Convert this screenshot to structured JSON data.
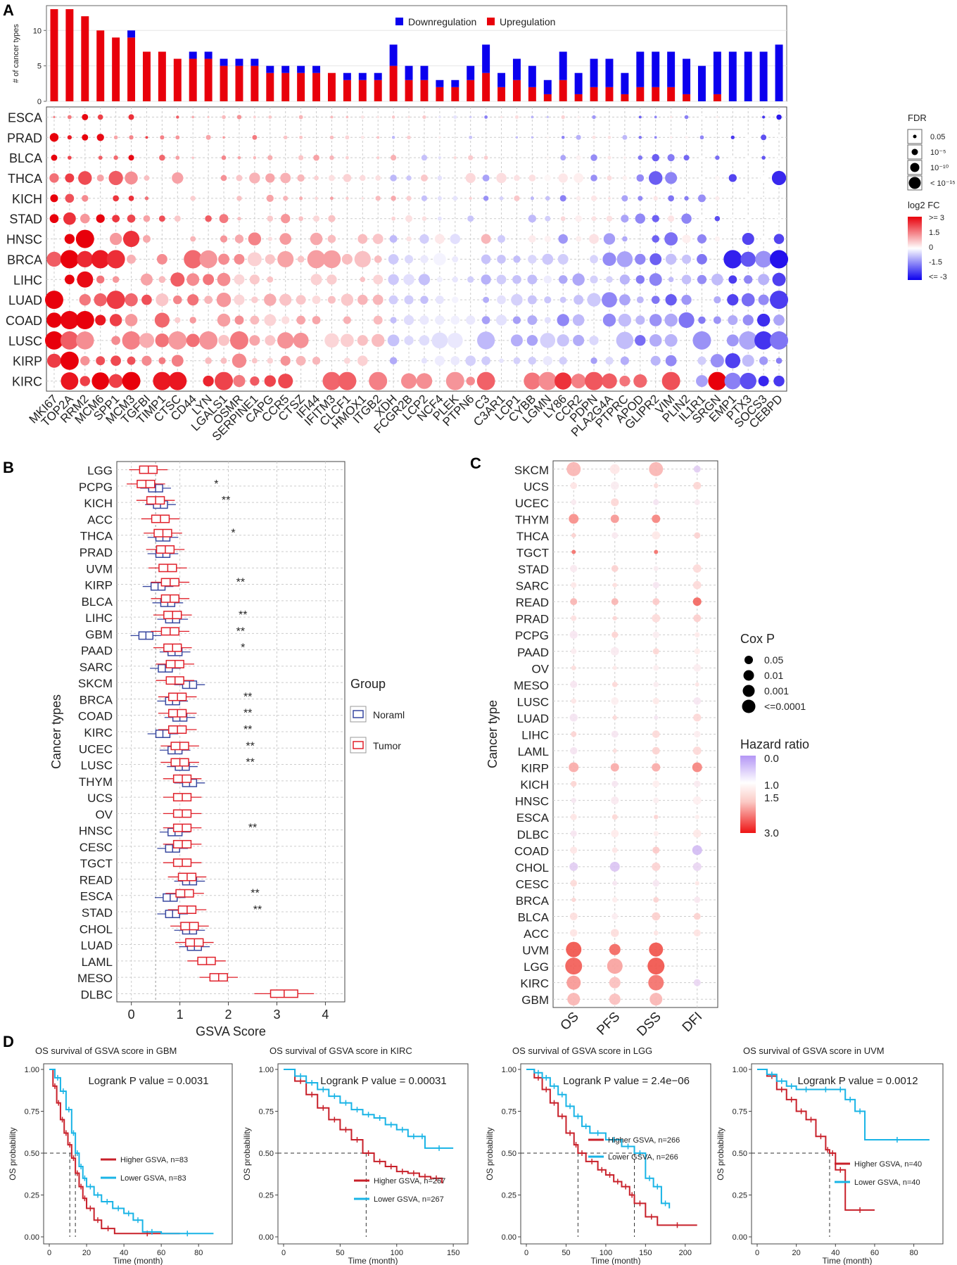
{
  "panel_labels": [
    "A",
    "B",
    "C",
    "D"
  ],
  "colors": {
    "red": "#e8000b",
    "blue": "#0b00ee",
    "km_red": "#c8202a",
    "km_blue": "#19b4e6",
    "normal_box": "#3848a0",
    "tumor_box": "#e0202a",
    "grid": "#cccccc"
  },
  "chart_data": [
    {
      "id": "A_bar",
      "type": "bar",
      "stacked": true,
      "ylabel": "# of cancer types",
      "ylim": [
        0,
        13.5
      ],
      "yticks": [
        0,
        5,
        10
      ],
      "legend": [
        "Downregulation",
        "Upregulation"
      ],
      "categories": [
        "MKI67",
        "TOP2A",
        "RRM2",
        "MCM6",
        "SPP1",
        "MCM3",
        "TGFBI",
        "TIMP1",
        "CTSC",
        "CD44",
        "LYN",
        "LGALS1",
        "OSMR",
        "SERPINE1",
        "CAPG",
        "CCR5",
        "CTSZ",
        "IFI44",
        "IFITM3",
        "CLCF1",
        "HMOX1",
        "ITGB2",
        "XDH",
        "FCGR2B",
        "LCP2",
        "NCF4",
        "PLEK",
        "PTPN6",
        "C3",
        "C3AR1",
        "LCP1",
        "CYBB",
        "LGMN",
        "LY86",
        "CCR2",
        "PDPN",
        "PLA2G4A",
        "PTPRC",
        "APOD",
        "GLIPR2",
        "VIM",
        "PLIN2",
        "IL1R1",
        "SRGN",
        "EMP1",
        "PTX3",
        "SOCS3",
        "CEBPD"
      ],
      "series": [
        {
          "name": "Upregulation",
          "values": [
            13,
            13,
            12,
            10,
            9,
            9,
            7,
            7,
            6,
            6,
            6,
            5,
            5,
            5,
            4,
            4,
            4,
            4,
            4,
            3,
            3,
            3,
            5,
            3,
            3,
            2,
            2,
            3,
            4,
            2,
            3,
            2,
            1,
            3,
            1,
            2,
            2,
            1,
            2,
            2,
            2,
            1,
            0,
            1,
            0,
            0,
            0,
            0
          ]
        },
        {
          "name": "Downregulation",
          "values": [
            0,
            0,
            0,
            0,
            0,
            1,
            0,
            0,
            0,
            1,
            1,
            1,
            1,
            1,
            1,
            1,
            1,
            1,
            0,
            1,
            1,
            1,
            3,
            2,
            2,
            1,
            1,
            2,
            4,
            2,
            3,
            3,
            2,
            4,
            3,
            4,
            4,
            3,
            5,
            5,
            5,
            5,
            5,
            6,
            7,
            7,
            7,
            8
          ]
        }
      ]
    },
    {
      "id": "A_dot",
      "type": "scatter",
      "rows": [
        "ESCA",
        "PRAD",
        "BLCA",
        "THCA",
        "KICH",
        "STAD",
        "HNSC",
        "BRCA",
        "LIHC",
        "LUAD",
        "COAD",
        "LUSC",
        "KIRP",
        "KIRC"
      ],
      "legend_size_title": "FDR",
      "legend_size_labels": [
        "0.05",
        "10⁻⁵",
        "10⁻¹⁰",
        "< 10⁻¹⁵"
      ],
      "legend_color_title": "log2 FC",
      "legend_color_labels": [
        ">= 3",
        "1.5",
        "0",
        "-1.5",
        "<= -3"
      ]
    },
    {
      "id": "B",
      "type": "boxplot",
      "xlabel": "GSVA Score",
      "ylabel": "Cancer types",
      "xlim": [
        -0.3,
        4.4
      ],
      "xticks": [
        0,
        1,
        2,
        3,
        4
      ],
      "legend_title": "Group",
      "legend": [
        "Noraml",
        "Tumor"
      ],
      "categories": [
        "LGG",
        "PCPG",
        "KICH",
        "ACC",
        "THCA",
        "PRAD",
        "UVM",
        "KIRP",
        "BLCA",
        "LIHC",
        "GBM",
        "PAAD",
        "SARC",
        "SKCM",
        "BRCA",
        "COAD",
        "KIRC",
        "UCEC",
        "LUSC",
        "THYM",
        "UCS",
        "OV",
        "HNSC",
        "CESC",
        "TGCT",
        "READ",
        "ESCA",
        "STAD",
        "CHOL",
        "LUAD",
        "LAML",
        "MESO",
        "DLBC"
      ],
      "tumor_median": [
        0.35,
        0.3,
        0.5,
        0.6,
        0.65,
        0.7,
        0.75,
        0.8,
        0.8,
        0.85,
        0.8,
        0.85,
        0.9,
        0.9,
        0.95,
        0.95,
        0.95,
        1.0,
        1.0,
        1.05,
        1.05,
        1.05,
        1.05,
        1.05,
        1.05,
        1.15,
        1.1,
        1.15,
        1.2,
        1.3,
        1.55,
        1.8,
        3.15
      ],
      "normal_median": [
        null,
        0.5,
        0.6,
        null,
        0.65,
        0.65,
        null,
        0.55,
        0.75,
        0.85,
        0.3,
        0.9,
        0.7,
        1.2,
        0.85,
        1.0,
        0.65,
        0.9,
        1.05,
        1.2,
        null,
        null,
        0.9,
        0.85,
        null,
        1.2,
        0.8,
        0.85,
        1.2,
        1.3,
        null,
        null,
        null
      ],
      "significance": [
        "",
        "*",
        "**",
        "",
        "*",
        "",
        "",
        "**",
        "",
        "**",
        "**",
        "*",
        "",
        "",
        "**",
        "**",
        "**",
        "**",
        "**",
        "",
        "",
        "",
        "**",
        "",
        "",
        "",
        "**",
        "**",
        "",
        "",
        "",
        "",
        ""
      ]
    },
    {
      "id": "C",
      "type": "scatter",
      "xlabel": "",
      "ylabel": "Cancer type",
      "columns": [
        "OS",
        "PFS",
        "DSS",
        "DFI"
      ],
      "rows": [
        "SKCM",
        "UCS",
        "UCEC",
        "THYM",
        "THCA",
        "TGCT",
        "STAD",
        "SARC",
        "READ",
        "PRAD",
        "PCPG",
        "PAAD",
        "OV",
        "MESO",
        "LUSC",
        "LUAD",
        "LIHC",
        "LAML",
        "KIRP",
        "KICH",
        "HNSC",
        "ESCA",
        "DLBC",
        "COAD",
        "CHOL",
        "CESC",
        "BRCA",
        "BLCA",
        "ACC",
        "UVM",
        "LGG",
        "KIRC",
        "GBM"
      ],
      "legend_size_title": "Cox P",
      "legend_size_labels": [
        "0.05",
        "0.01",
        "0.001",
        "<=0.0001"
      ],
      "legend_color_title": "Hazard ratio",
      "legend_color_labels": [
        "0.0",
        "1.0",
        "1.5",
        "3.0"
      ]
    },
    {
      "id": "D1",
      "type": "line",
      "title": "OS survival of GSVA score in GBM",
      "pvalue_text": "Logrank P value = 0.0031",
      "xlabel": "Time (month)",
      "ylabel": "OS probability",
      "xlim": [
        0,
        95
      ],
      "xticks": [
        0,
        20,
        40,
        60,
        80
      ],
      "yticks": [
        "0.00",
        "0.25",
        "0.50",
        "0.75",
        "1.00"
      ],
      "legend": [
        "Higher GSVA, n=83",
        "Lower GSVA, n=83"
      ],
      "median_time": [
        11,
        14
      ],
      "series": [
        {
          "name": "Higher GSVA",
          "x": [
            0,
            2,
            4,
            6,
            8,
            10,
            12,
            14,
            16,
            18,
            20,
            24,
            28,
            35,
            70
          ],
          "y": [
            1,
            0.9,
            0.8,
            0.7,
            0.62,
            0.55,
            0.47,
            0.38,
            0.3,
            0.23,
            0.17,
            0.1,
            0.05,
            0.02,
            0.02
          ]
        },
        {
          "name": "Lower GSVA",
          "x": [
            0,
            3,
            6,
            9,
            12,
            14,
            16,
            18,
            20,
            24,
            28,
            34,
            40,
            45,
            50,
            60,
            88
          ],
          "y": [
            1,
            0.95,
            0.87,
            0.76,
            0.62,
            0.5,
            0.42,
            0.35,
            0.3,
            0.25,
            0.21,
            0.17,
            0.14,
            0.1,
            0.03,
            0.02,
            0.02
          ]
        }
      ]
    },
    {
      "id": "D2",
      "type": "line",
      "title": "OS survival of GSVA score in KIRC",
      "pvalue_text": "Logrank P value = 0.00031",
      "xlabel": "Time (month)",
      "ylabel": "OS probability",
      "xlim": [
        0,
        158
      ],
      "xticks": [
        0,
        50,
        100,
        150
      ],
      "yticks": [
        "0.00",
        "0.25",
        "0.50",
        "0.75",
        "1.00"
      ],
      "legend": [
        "Higher GSVA, n=267",
        "Lower GSVA, n=267"
      ],
      "median_time": [
        73
      ],
      "series": [
        {
          "name": "Higher GSVA",
          "x": [
            0,
            10,
            20,
            30,
            40,
            50,
            60,
            70,
            80,
            90,
            100,
            110,
            120,
            130,
            140
          ],
          "y": [
            1,
            0.93,
            0.85,
            0.77,
            0.7,
            0.64,
            0.58,
            0.5,
            0.45,
            0.42,
            0.39,
            0.38,
            0.36,
            0.35,
            0.32
          ]
        },
        {
          "name": "Lower GSVA",
          "x": [
            0,
            10,
            20,
            30,
            40,
            50,
            60,
            70,
            80,
            90,
            100,
            110,
            120,
            125,
            150
          ],
          "y": [
            1,
            0.96,
            0.92,
            0.88,
            0.84,
            0.8,
            0.76,
            0.73,
            0.71,
            0.67,
            0.64,
            0.6,
            0.6,
            0.53,
            0.53
          ]
        }
      ]
    },
    {
      "id": "D3",
      "type": "line",
      "title": "OS survival of GSVA score in LGG",
      "pvalue_text": "Logrank P value = 2.4e−06",
      "xlabel": "Time (month)",
      "ylabel": "OS probability",
      "xlim": [
        0,
        225
      ],
      "xticks": [
        0,
        50,
        100,
        150,
        200
      ],
      "yticks": [
        "0.00",
        "0.25",
        "0.50",
        "0.75",
        "1.00"
      ],
      "legend": [
        "Higher GSVA, n=266",
        "Lower GSVA, n=266"
      ],
      "median_time": [
        65,
        136
      ],
      "series": [
        {
          "name": "Higher GSVA",
          "x": [
            0,
            10,
            20,
            30,
            40,
            50,
            60,
            65,
            75,
            90,
            100,
            110,
            120,
            130,
            136,
            150,
            165,
            215
          ],
          "y": [
            1,
            0.95,
            0.88,
            0.8,
            0.72,
            0.62,
            0.55,
            0.5,
            0.45,
            0.4,
            0.37,
            0.33,
            0.3,
            0.25,
            0.2,
            0.12,
            0.07,
            0.07
          ]
        },
        {
          "name": "Lower GSVA",
          "x": [
            0,
            10,
            20,
            30,
            40,
            50,
            60,
            70,
            80,
            100,
            120,
            136,
            150,
            160,
            170,
            180
          ],
          "y": [
            1,
            0.98,
            0.95,
            0.9,
            0.85,
            0.78,
            0.72,
            0.66,
            0.62,
            0.58,
            0.54,
            0.5,
            0.35,
            0.3,
            0.2,
            0.17
          ]
        }
      ]
    },
    {
      "id": "D4",
      "type": "line",
      "title": "OS survival of GSVA score in UVM",
      "pvalue_text": "Logrank P value = 0.0012",
      "xlabel": "Time (month)",
      "ylabel": "OS probability",
      "xlim": [
        0,
        92
      ],
      "xticks": [
        0,
        20,
        40,
        60,
        80
      ],
      "yticks": [
        "0.00",
        "0.25",
        "0.50",
        "0.75",
        "1.00"
      ],
      "legend": [
        "Higher GSVA, n=40",
        "Lower GSVA, n=40"
      ],
      "median_time": [
        37
      ],
      "series": [
        {
          "name": "Higher GSVA",
          "x": [
            0,
            5,
            10,
            15,
            20,
            25,
            30,
            35,
            37,
            40,
            45,
            60
          ],
          "y": [
            1,
            0.96,
            0.88,
            0.82,
            0.75,
            0.7,
            0.6,
            0.52,
            0.5,
            0.4,
            0.16,
            0.16
          ]
        },
        {
          "name": "Lower GSVA",
          "x": [
            0,
            5,
            10,
            15,
            20,
            30,
            40,
            45,
            50,
            55,
            88
          ],
          "y": [
            1,
            0.97,
            0.93,
            0.9,
            0.88,
            0.88,
            0.88,
            0.82,
            0.75,
            0.58,
            0.58
          ]
        }
      ]
    }
  ]
}
